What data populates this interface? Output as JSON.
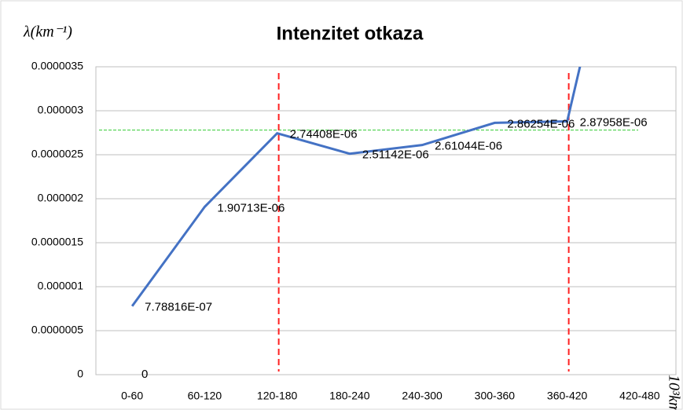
{
  "chart_data": {
    "type": "line",
    "title": "Intenzitet otkaza",
    "y_axis_label": "λ(km⁻¹)",
    "x_axis_label": "10³km",
    "categories": [
      "0-60",
      "60-120",
      "120-180",
      "180-240",
      "240-300",
      "300-360",
      "360-420",
      "420-480"
    ],
    "series": [
      {
        "color": "#4472c4",
        "values": [
          7.78816e-07,
          1.90713e-06,
          2.74408e-06,
          2.51142e-06,
          2.61044e-06,
          2.86254e-06,
          2.87958e-06,
          6.4e-06
        ],
        "value_labels": [
          "7.78816E-07",
          "1.90713E-06",
          "2.74408E-06",
          "2.51142E-06",
          "2.61044E-06",
          "2.86254E-06",
          "2.87958E-06",
          null
        ]
      },
      {
        "color": "none",
        "values": [
          0,
          null,
          null,
          null,
          null,
          null,
          null,
          null
        ],
        "value_labels": [
          "0",
          null,
          null,
          null,
          null,
          null,
          null,
          null
        ]
      }
    ],
    "ylim": [
      0,
      3.5e-06
    ],
    "yticks": [
      0,
      {
        "value": 5e-07,
        "label": "0.0000005"
      },
      {
        "value": 1e-06,
        "label": "0.000001"
      },
      {
        "value": 1.5e-06,
        "label": "0.0000015"
      },
      {
        "value": 2e-06,
        "label": "0.000002"
      },
      {
        "value": 2.5e-06,
        "label": "0.0000025"
      },
      {
        "value": 3e-06,
        "label": "0.000003"
      },
      {
        "value": 3.5e-06,
        "label": "0.0000035"
      }
    ],
    "grid": true,
    "reference_vlines": {
      "color": "#ff2020",
      "categories": [
        "120-180",
        "360-420"
      ]
    },
    "reference_hline": {
      "color": "#33cc33",
      "value": 2.78e-06
    }
  }
}
